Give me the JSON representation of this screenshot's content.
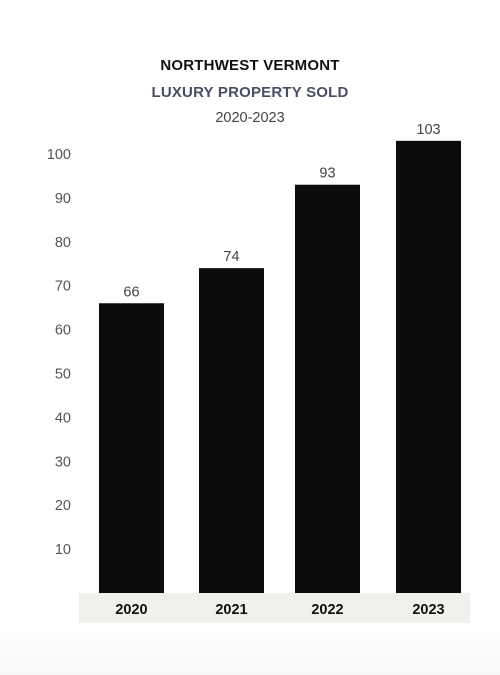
{
  "chart_data": {
    "type": "bar",
    "title": "NORTHWEST VERMONT",
    "subtitle": "LUXURY PROPERTY SOLD",
    "period": "2020-2023",
    "categories": [
      "2020",
      "2021",
      "2022",
      "2023"
    ],
    "values": [
      66,
      74,
      93,
      103
    ],
    "data_labels": [
      "66",
      "74",
      "93",
      "103"
    ],
    "yticks": [
      10,
      20,
      30,
      40,
      50,
      60,
      70,
      80,
      90,
      100
    ],
    "ylim": [
      0,
      100
    ],
    "grid": false,
    "legend": "none",
    "colors": {
      "bar": "#0d0b0c",
      "category_band": "#f1f0ec",
      "title": "#111111",
      "subtitle": "#4a4d63",
      "tick_label": "#555555"
    }
  }
}
